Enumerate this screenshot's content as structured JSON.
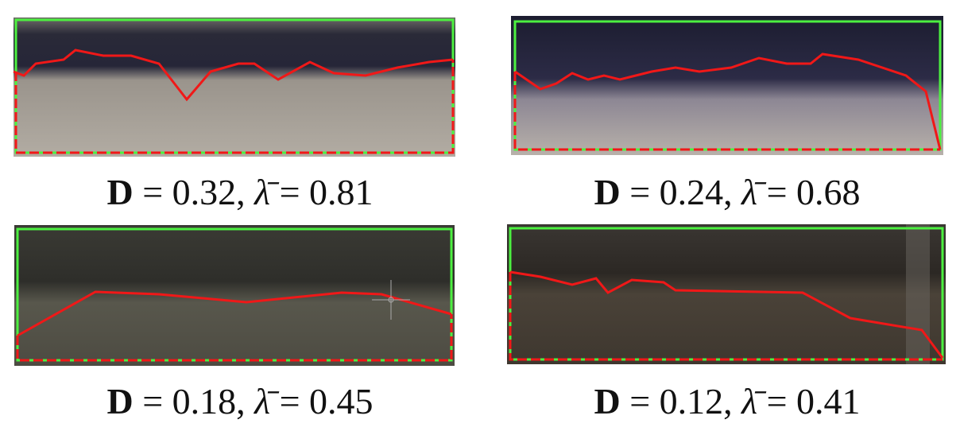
{
  "panels": [
    {
      "d_symbol": "D",
      "d_text": " = 0.32, ",
      "lambda_symbol": "λ̄",
      "lambda_text": " = 0.81"
    },
    {
      "d_symbol": "D",
      "d_text": " = 0.24, ",
      "lambda_symbol": "λ̄",
      "lambda_text": " = 0.68"
    },
    {
      "d_symbol": "D",
      "d_text": " = 0.18, ",
      "lambda_symbol": "λ̄",
      "lambda_text": " = 0.45"
    },
    {
      "d_symbol": "D",
      "d_text": " = 0.12, ",
      "lambda_symbol": "λ̄",
      "lambda_text": " = 0.41"
    }
  ]
}
